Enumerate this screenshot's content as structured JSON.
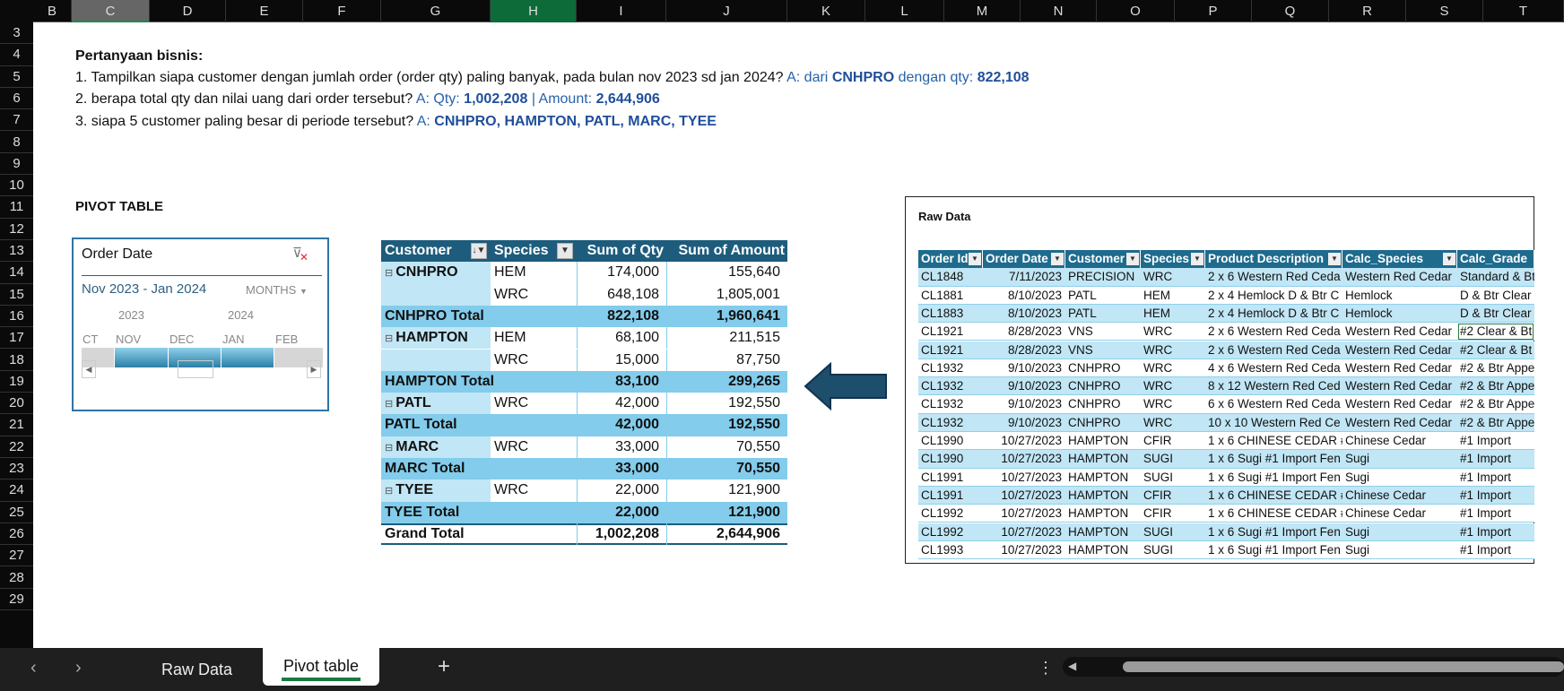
{
  "columns": [
    "B",
    "C",
    "D",
    "E",
    "F",
    "G",
    "H",
    "I",
    "J",
    "K",
    "L",
    "M",
    "N",
    "O",
    "P",
    "Q",
    "R",
    "S",
    "T"
  ],
  "rows": [
    "3",
    "4",
    "5",
    "6",
    "7",
    "8",
    "9",
    "10",
    "11",
    "12",
    "13",
    "14",
    "15",
    "16",
    "17",
    "18",
    "19",
    "20",
    "21",
    "22",
    "23",
    "24",
    "25",
    "26",
    "27",
    "28",
    "29"
  ],
  "questions": {
    "title": "Pertanyaan bisnis:",
    "q1": "1. Tampilkan siapa customer dengan jumlah order (order qty) paling banyak, pada bulan nov 2023 sd jan 2024?",
    "a1_prefix": "A: dari",
    "a1_customer": "CNHPRO",
    "a1_mid": "dengan qty:",
    "a1_qty": "822,108",
    "q2": "2. berapa total qty dan nilai uang dari order tersebut?",
    "a2_prefix": "A: Qty:",
    "a2_qty": "1,002,208",
    "a2_sep": "| Amount:",
    "a2_amount": "2,644,906",
    "q3": "3. siapa 5 customer paling besar di periode tersebut?",
    "a3_prefix": "A:",
    "a3_list": "CNHPRO, HAMPTON, PATL, MARC, TYEE"
  },
  "pivot_label": "PIVOT TABLE",
  "slicer": {
    "title": "Order Date",
    "range": "Nov 2023 - Jan 2024",
    "level": "MONTHS",
    "years": [
      "2023",
      "2024"
    ],
    "months": [
      "CT",
      "NOV",
      "DEC",
      "JAN",
      "FEB"
    ],
    "selected_months": [
      "NOV",
      "DEC",
      "JAN"
    ]
  },
  "pivot": {
    "headers": [
      "Customer",
      "Species",
      "Sum of Qty",
      "Sum of Amount"
    ],
    "rows": [
      {
        "type": "item",
        "customer": "CNHPRO",
        "species": "HEM",
        "qty": "174,000",
        "amount": "155,640"
      },
      {
        "type": "item",
        "customer": "",
        "species": "WRC",
        "qty": "648,108",
        "amount": "1,805,001"
      },
      {
        "type": "total",
        "customer": "CNHPRO Total",
        "species": "",
        "qty": "822,108",
        "amount": "1,960,641"
      },
      {
        "type": "item",
        "customer": "HAMPTON",
        "species": "HEM",
        "qty": "68,100",
        "amount": "211,515"
      },
      {
        "type": "item",
        "customer": "",
        "species": "WRC",
        "qty": "15,000",
        "amount": "87,750"
      },
      {
        "type": "total",
        "customer": "HAMPTON Total",
        "species": "",
        "qty": "83,100",
        "amount": "299,265"
      },
      {
        "type": "item",
        "customer": "PATL",
        "species": "WRC",
        "qty": "42,000",
        "amount": "192,550"
      },
      {
        "type": "total",
        "customer": "PATL Total",
        "species": "",
        "qty": "42,000",
        "amount": "192,550"
      },
      {
        "type": "item",
        "customer": "MARC",
        "species": "WRC",
        "qty": "33,000",
        "amount": "70,550"
      },
      {
        "type": "total",
        "customer": "MARC Total",
        "species": "",
        "qty": "33,000",
        "amount": "70,550"
      },
      {
        "type": "item",
        "customer": "TYEE",
        "species": "WRC",
        "qty": "22,000",
        "amount": "121,900"
      },
      {
        "type": "total",
        "customer": "TYEE Total",
        "species": "",
        "qty": "22,000",
        "amount": "121,900"
      },
      {
        "type": "grand",
        "customer": "Grand Total",
        "species": "",
        "qty": "1,002,208",
        "amount": "2,644,906"
      }
    ]
  },
  "raw": {
    "title": "Raw Data",
    "headers": [
      "Order Id",
      "Order Date",
      "Customer",
      "Species",
      "Product Description",
      "Calc_Species",
      "Calc_Grade"
    ],
    "rows": [
      [
        "CL1848",
        "7/11/2023",
        "PRECISION",
        "WRC",
        "2 x 6 Western Red Ceda",
        "Western Red Cedar",
        "Standard & Bt"
      ],
      [
        "CL1881",
        "8/10/2023",
        "PATL",
        "HEM",
        "2 x 4 Hemlock D & Btr C",
        "Hemlock",
        "D & Btr Clear"
      ],
      [
        "CL1883",
        "8/10/2023",
        "PATL",
        "HEM",
        "2 x 4 Hemlock D & Btr C",
        "Hemlock",
        "D & Btr Clear"
      ],
      [
        "CL1921",
        "8/28/2023",
        "VNS",
        "WRC",
        "2 x 6 Western Red Ceda",
        "Western Red Cedar",
        "#2 Clear & Bt"
      ],
      [
        "CL1921",
        "8/28/2023",
        "VNS",
        "WRC",
        "2 x 6 Western Red Ceda",
        "Western Red Cedar",
        "#2 Clear & Bt"
      ],
      [
        "CL1932",
        "9/10/2023",
        "CNHPRO",
        "WRC",
        "4 x 6 Western Red Ceda",
        "Western Red Cedar",
        "#2 & Btr Appe"
      ],
      [
        "CL1932",
        "9/10/2023",
        "CNHPRO",
        "WRC",
        "8 x 12 Western Red Ced",
        "Western Red Cedar",
        "#2 & Btr Appe"
      ],
      [
        "CL1932",
        "9/10/2023",
        "CNHPRO",
        "WRC",
        "6 x 6 Western Red Ceda",
        "Western Red Cedar",
        "#2 & Btr Appe"
      ],
      [
        "CL1932",
        "9/10/2023",
        "CNHPRO",
        "WRC",
        "10 x 10 Western Red Ce",
        "Western Red Cedar",
        "#2 & Btr Appe"
      ],
      [
        "CL1990",
        "10/27/2023",
        "HAMPTON",
        "CFIR",
        "1 x 6 CHINESE CEDAR #",
        "Chinese Cedar",
        "#1 Import"
      ],
      [
        "CL1990",
        "10/27/2023",
        "HAMPTON",
        "SUGI",
        "1 x 6 Sugi #1 Import Fen",
        "Sugi",
        "#1 Import"
      ],
      [
        "CL1991",
        "10/27/2023",
        "HAMPTON",
        "SUGI",
        "1 x 6 Sugi #1 Import Fen",
        "Sugi",
        "#1 Import"
      ],
      [
        "CL1991",
        "10/27/2023",
        "HAMPTON",
        "CFIR",
        "1 x 6 CHINESE CEDAR #",
        "Chinese Cedar",
        "#1 Import"
      ],
      [
        "CL1992",
        "10/27/2023",
        "HAMPTON",
        "CFIR",
        "1 x 6 CHINESE CEDAR #",
        "Chinese Cedar",
        "#1 Import"
      ],
      [
        "CL1992",
        "10/27/2023",
        "HAMPTON",
        "SUGI",
        "1 x 6 Sugi #1 Import Fen",
        "Sugi",
        "#1 Import"
      ],
      [
        "CL1993",
        "10/27/2023",
        "HAMPTON",
        "SUGI",
        "1 x 6 Sugi #1 Import Fen",
        "Sugi",
        "#1 Import"
      ]
    ]
  },
  "tabs": {
    "sheets": [
      "Raw Data",
      "Pivot table"
    ],
    "active": "Pivot table",
    "add": "+"
  },
  "colors": {
    "pivot_header": "#1d5c7c",
    "pivot_total": "#83cceb",
    "pivot_light": "#c1e6f5",
    "raw_header": "#1e6b8e",
    "answer": "#2862a8",
    "active_col": "#0d6b3a"
  }
}
